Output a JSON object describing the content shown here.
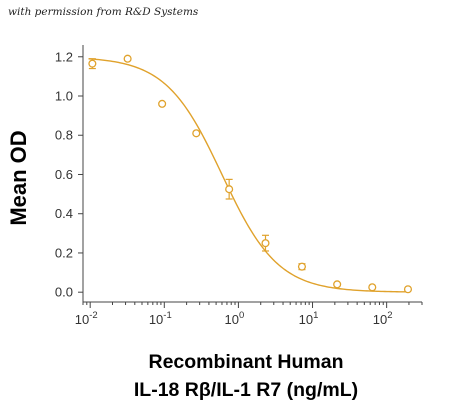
{
  "credit_text": "with permission from R&D Systems",
  "colors": {
    "series": "#E0A22C",
    "axis": "#444444",
    "text": "#000000"
  },
  "chart_data": {
    "type": "scatter",
    "xlabel_line1": "Recombinant Human",
    "xlabel_line2": "IL-18 Rβ/IL-1 R7 (ng/mL)",
    "ylabel": "Mean OD",
    "x_scale": "log",
    "xlim": [
      0.008,
      300
    ],
    "ylim": [
      -0.05,
      1.26
    ],
    "x_ticks": [
      {
        "value": 0.01,
        "base": "10",
        "exp": "-2"
      },
      {
        "value": 0.1,
        "base": "10",
        "exp": "-1"
      },
      {
        "value": 1,
        "base": "10",
        "exp": "0"
      },
      {
        "value": 10,
        "base": "10",
        "exp": "1"
      },
      {
        "value": 100,
        "base": "10",
        "exp": "2"
      }
    ],
    "y_ticks": [
      "0.0",
      "0.2",
      "0.4",
      "0.6",
      "0.8",
      "1.0",
      "1.2"
    ],
    "grid": false,
    "series": [
      {
        "points": [
          {
            "x": 0.0107,
            "y": 1.165,
            "err": 0.025
          },
          {
            "x": 0.032,
            "y": 1.19,
            "err": 0
          },
          {
            "x": 0.0935,
            "y": 0.96,
            "err": 0
          },
          {
            "x": 0.27,
            "y": 0.81,
            "err": 0
          },
          {
            "x": 0.75,
            "y": 0.525,
            "err": 0.05
          },
          {
            "x": 2.32,
            "y": 0.25,
            "err": 0.04
          },
          {
            "x": 7.2,
            "y": 0.13,
            "err": 0.015
          },
          {
            "x": 21.5,
            "y": 0.04,
            "err": 0
          },
          {
            "x": 64,
            "y": 0.025,
            "err": 0
          },
          {
            "x": 194,
            "y": 0.015,
            "err": 0
          }
        ],
        "fit": {
          "model": "4PL",
          "top": 1.2,
          "bottom": 0.0,
          "ec50": 0.6,
          "hill": 1.15
        }
      }
    ]
  }
}
